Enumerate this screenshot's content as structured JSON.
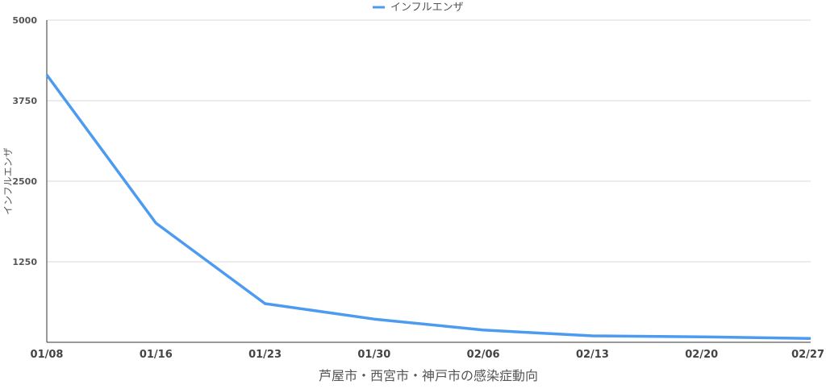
{
  "chart_data": {
    "type": "line",
    "title": "",
    "xlabel": "芦屋市・西宮市・神戸市の感染症動向",
    "ylabel": "インフルエンザ",
    "ylim": [
      0,
      5000
    ],
    "yticks": [
      "1250",
      "2500",
      "3750",
      "5000"
    ],
    "ytick_values": [
      1250,
      2500,
      3750,
      5000
    ],
    "x": [
      "01/08",
      "01/16",
      "01/23",
      "01/30",
      "02/06",
      "02/13",
      "02/20",
      "02/27"
    ],
    "series": [
      {
        "name": "インフルエンザ",
        "color": "#4c9bf0",
        "values": [
          4150,
          1850,
          600,
          360,
          190,
          100,
          85,
          60
        ]
      }
    ],
    "legend": "top-center",
    "grid": true
  }
}
